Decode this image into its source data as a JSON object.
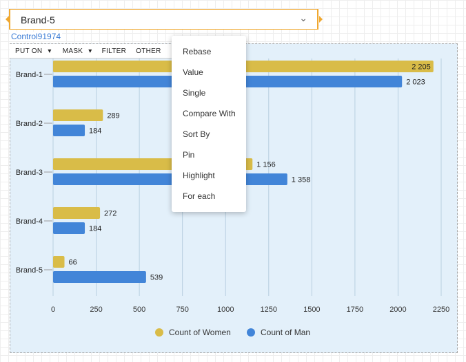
{
  "selector": {
    "value": "Brand-5"
  },
  "control_label": "Control91974",
  "toolbar": {
    "put_on": "PUT ON",
    "mask": "MASK",
    "filter": "FILTER",
    "other": "OTHER"
  },
  "menu": [
    "Rebase",
    "Value",
    "Single",
    "Compare With",
    "Sort By",
    "Pin",
    "Highlight",
    "For each"
  ],
  "chart_data": {
    "type": "bar",
    "orientation": "horizontal",
    "categories": [
      "Brand-1",
      "Brand-2",
      "Brand-3",
      "Brand-4",
      "Brand-5"
    ],
    "series": [
      {
        "name": "Count of Women",
        "color": "#d9bc48",
        "values": [
          2205,
          289,
          1156,
          272,
          66
        ],
        "labels": [
          "2 205",
          "289",
          "1 156",
          "272",
          "66"
        ]
      },
      {
        "name": "Count of Man",
        "color": "#4285d8",
        "values": [
          2023,
          184,
          1358,
          184,
          539
        ],
        "labels": [
          "2 023",
          "184",
          "1 358",
          "184",
          "539"
        ]
      }
    ],
    "xlim": [
      0,
      2250
    ],
    "xticks": [
      "0",
      "250",
      "500",
      "750",
      "1000",
      "1250",
      "1500",
      "1750",
      "2000",
      "2250"
    ],
    "grid": true,
    "legend": "bottom"
  }
}
